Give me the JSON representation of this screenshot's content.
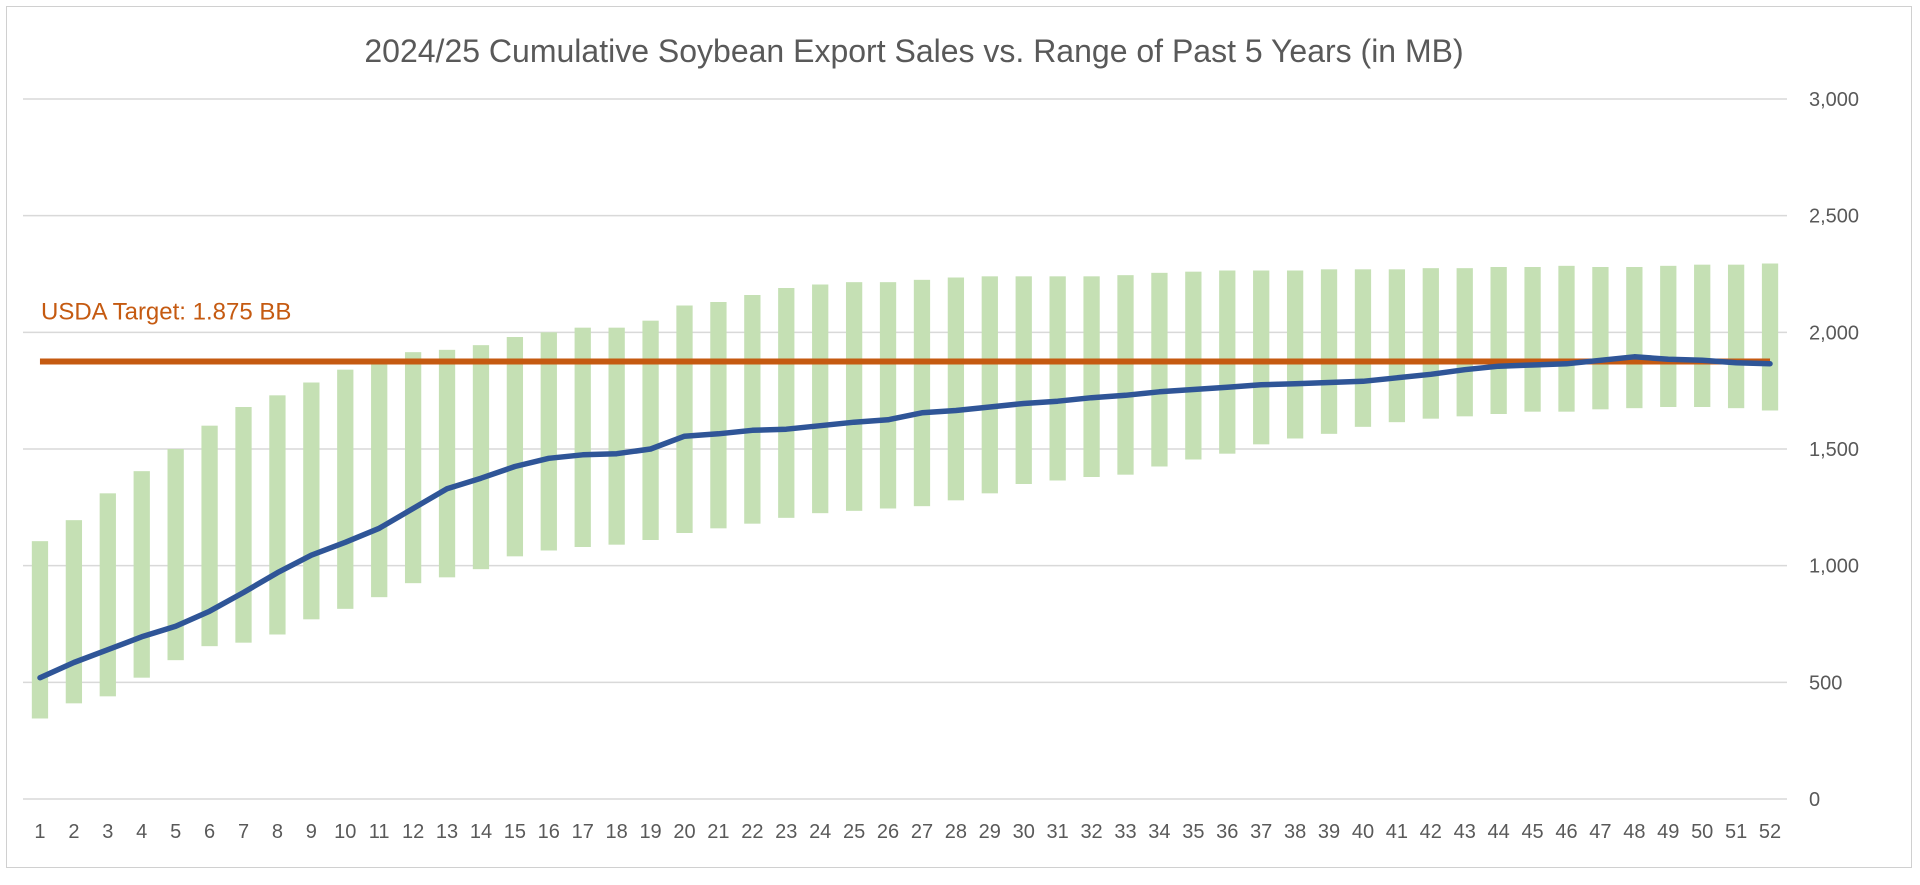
{
  "chart_data": {
    "type": "bar",
    "title": "2024/25 Cumulative Soybean Export Sales vs. Range of Past 5 Years (in MB)",
    "xlabel": "",
    "ylabel": "",
    "ylim": [
      0,
      3000
    ],
    "yticks": [
      0,
      500,
      1000,
      1500,
      2000,
      2500,
      3000
    ],
    "ytick_labels": [
      "0",
      "500",
      "1,000",
      "1,500",
      "2,000",
      "2,500",
      "3,000"
    ],
    "y_axis_side": "right",
    "grid": true,
    "categories": [
      "1",
      "2",
      "3",
      "4",
      "5",
      "6",
      "7",
      "8",
      "9",
      "10",
      "11",
      "12",
      "13",
      "14",
      "15",
      "16",
      "17",
      "18",
      "19",
      "20",
      "21",
      "22",
      "23",
      "24",
      "25",
      "26",
      "27",
      "28",
      "29",
      "30",
      "31",
      "32",
      "33",
      "34",
      "35",
      "36",
      "37",
      "38",
      "39",
      "40",
      "41",
      "42",
      "43",
      "44",
      "45",
      "46",
      "47",
      "48",
      "49",
      "50",
      "51",
      "52"
    ],
    "range_series": {
      "low": [
        345,
        410,
        440,
        520,
        595,
        655,
        670,
        705,
        770,
        815,
        865,
        925,
        950,
        985,
        1040,
        1065,
        1080,
        1090,
        1110,
        1140,
        1160,
        1180,
        1205,
        1225,
        1235,
        1245,
        1255,
        1280,
        1310,
        1350,
        1365,
        1380,
        1390,
        1425,
        1455,
        1480,
        1520,
        1545,
        1565,
        1595,
        1615,
        1630,
        1640,
        1650,
        1660,
        1660,
        1670,
        1675,
        1680,
        1680,
        1675,
        1665
      ],
      "high": [
        1105,
        1195,
        1310,
        1405,
        1500,
        1600,
        1680,
        1730,
        1785,
        1840,
        1880,
        1915,
        1925,
        1945,
        1980,
        2000,
        2020,
        2020,
        2050,
        2115,
        2130,
        2160,
        2190,
        2205,
        2215,
        2215,
        2225,
        2235,
        2240,
        2240,
        2240,
        2240,
        2245,
        2255,
        2260,
        2265,
        2265,
        2265,
        2270,
        2270,
        2270,
        2275,
        2275,
        2280,
        2280,
        2285,
        2280,
        2280,
        2285,
        2290,
        2290,
        2295
      ],
      "color": "#c5e0b4"
    },
    "current_series": {
      "values": [
        520,
        585,
        640,
        695,
        740,
        805,
        885,
        970,
        1045,
        1100,
        1160,
        1245,
        1330,
        1375,
        1425,
        1460,
        1475,
        1480,
        1500,
        1555,
        1565,
        1580,
        1585,
        1600,
        1615,
        1625,
        1655,
        1665,
        1680,
        1695,
        1705,
        1720,
        1730,
        1745,
        1755,
        1765,
        1775,
        1780,
        1785,
        1790,
        1805,
        1820,
        1840,
        1855,
        1860,
        1865,
        1880,
        1895,
        1885,
        1880,
        1870,
        1865
      ],
      "color": "#2f5597"
    },
    "target": {
      "value": 1875,
      "label": "USDA Target: 1.875 BB",
      "color": "#c55a11"
    }
  }
}
